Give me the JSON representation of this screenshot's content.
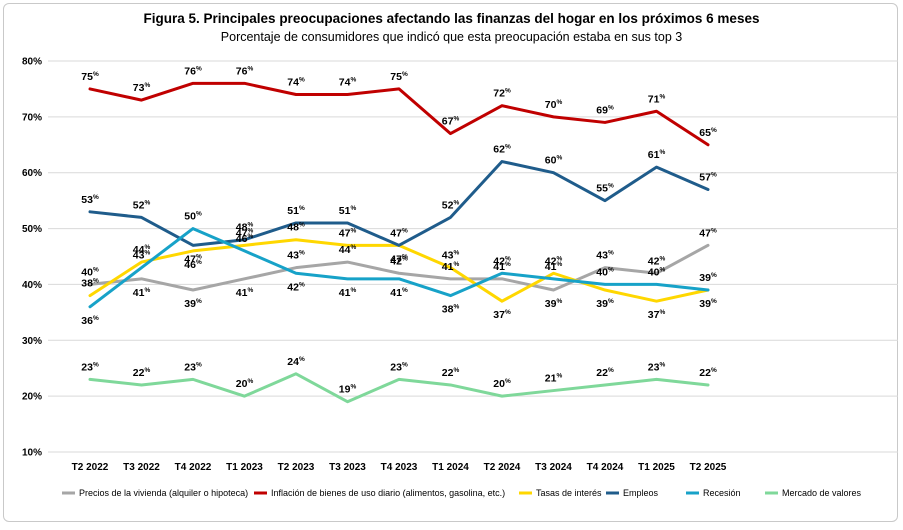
{
  "chart_data": {
    "type": "line",
    "title": "Figura 5. Principales preocupaciones afectando las finanzas del hogar en los próximos 6 meses",
    "subtitle": "Porcentaje de consumidores que indicó que esta preocupación estaba en sus top 3",
    "categories": [
      "T2 2022",
      "T3 2022",
      "T4 2022",
      "T1 2023",
      "T2 2023",
      "T3 2023",
      "T4 2023",
      "T1 2024",
      "T2 2024",
      "T3 2024",
      "T4 2024",
      "T1 2025",
      "T2 2025"
    ],
    "yticks": [
      "10%",
      "20%",
      "30%",
      "40%",
      "50%",
      "60%",
      "70%",
      "80%"
    ],
    "ylim": [
      10,
      80
    ],
    "grid": true,
    "legend_position": "bottom",
    "series": [
      {
        "name": "Precios de la vivienda (alquiler o hipoteca)",
        "color": "#a6a6a6",
        "values": [
          40,
          41,
          39,
          41,
          43,
          44,
          42,
          41,
          41,
          39,
          43,
          42,
          47
        ],
        "label_pos": [
          "above",
          "below",
          "below",
          "below",
          "above",
          "above",
          "above",
          "above",
          "above",
          "below",
          "above",
          "above",
          "above"
        ]
      },
      {
        "name": "Inflación de bienes de uso diario (alimentos, gasolina, etc.)",
        "color": "#c00000",
        "values": [
          75,
          73,
          76,
          76,
          74,
          74,
          75,
          67,
          72,
          70,
          69,
          71,
          65
        ],
        "label_pos": [
          "above",
          "above",
          "above",
          "above",
          "above",
          "above",
          "above",
          "above",
          "above",
          "above",
          "above",
          "above",
          "above"
        ]
      },
      {
        "name": "Tasas de interés",
        "color": "#ffd700",
        "values": [
          38,
          44,
          46,
          47,
          48,
          47,
          47,
          43,
          37,
          42,
          39,
          37,
          39
        ],
        "label_pos": [
          "above",
          "above",
          "below",
          "above",
          "above",
          "above",
          "below",
          "above",
          "below",
          "above",
          "below",
          "below",
          "below"
        ]
      },
      {
        "name": "Empleos",
        "color": "#1f5c8b",
        "values": [
          53,
          52,
          47,
          48,
          51,
          51,
          47,
          52,
          62,
          60,
          55,
          61,
          57
        ],
        "label_pos": [
          "above",
          "above",
          "below",
          "above",
          "above",
          "above",
          "above",
          "above",
          "above",
          "above",
          "above",
          "above",
          "above"
        ]
      },
      {
        "name": "Recesión",
        "color": "#17a2c8",
        "values": [
          36,
          43,
          50,
          46,
          42,
          41,
          41,
          38,
          42,
          41,
          40,
          40,
          39
        ],
        "label_pos": [
          "below",
          "above",
          "above",
          "above",
          "below",
          "below",
          "below",
          "below",
          "above",
          "above",
          "above",
          "above",
          "above"
        ]
      },
      {
        "name": "Mercado de valores",
        "color": "#7fd89a",
        "values": [
          23,
          22,
          23,
          20,
          24,
          19,
          23,
          22,
          20,
          21,
          22,
          23,
          22
        ],
        "label_pos": [
          "above",
          "above",
          "above",
          "above",
          "above",
          "above",
          "above",
          "above",
          "above",
          "above",
          "above",
          "above",
          "above"
        ]
      }
    ]
  }
}
